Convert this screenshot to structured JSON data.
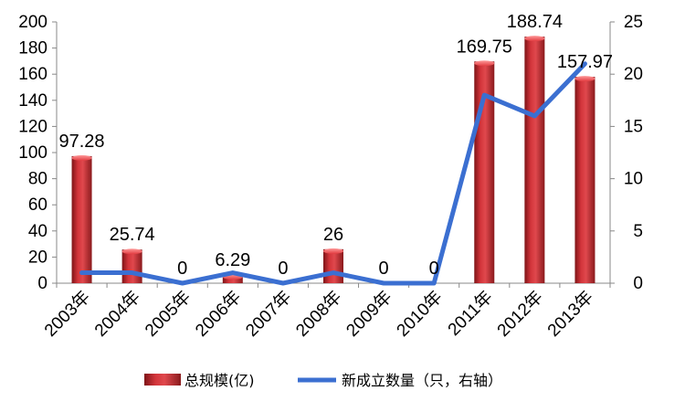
{
  "chart_data": {
    "type": "bar+line",
    "categories": [
      "2003年",
      "2004年",
      "2005年",
      "2006年",
      "2007年",
      "2008年",
      "2009年",
      "2010年",
      "2011年",
      "2012年",
      "2013年"
    ],
    "series": [
      {
        "name": "总规模(亿)",
        "type": "bar",
        "axis": "left",
        "values": [
          97.28,
          25.74,
          0,
          6.29,
          0,
          26,
          0,
          0,
          169.75,
          188.74,
          157.97
        ],
        "data_labels": [
          "97.28",
          "25.74",
          "0",
          "6.29",
          "0",
          "26",
          "0",
          "0",
          "169.75",
          "188.74",
          "157.97"
        ],
        "color": "#c0272d"
      },
      {
        "name": "新成立数量（只，右轴）",
        "type": "line",
        "axis": "right",
        "values": [
          1,
          1,
          0,
          1,
          0,
          1,
          0,
          0,
          18,
          16,
          21
        ],
        "color": "#3b6fd1"
      }
    ],
    "y_left": {
      "min": 0,
      "max": 200,
      "ticks": [
        "0",
        "20",
        "40",
        "60",
        "80",
        "100",
        "120",
        "140",
        "160",
        "180",
        "200"
      ]
    },
    "y_right": {
      "min": 0,
      "max": 25,
      "ticks": [
        "0",
        "5",
        "10",
        "15",
        "20",
        "25"
      ]
    },
    "legend_position": "bottom",
    "grid": false
  }
}
